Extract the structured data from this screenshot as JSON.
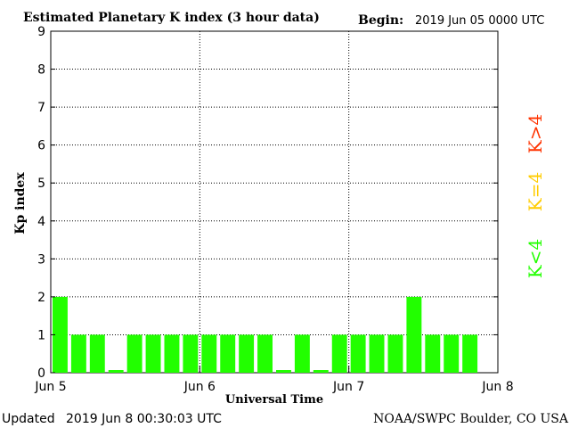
{
  "header": {
    "title": "Estimated Planetary K index (3 hour data)",
    "begin_label": "Begin:",
    "begin_value": "2019 Jun 05 0000 UTC"
  },
  "chart_data": {
    "type": "bar",
    "title": "Estimated Planetary K index (3 hour data)",
    "xlabel": "Universal Time",
    "ylabel": "Kp index",
    "ylim": [
      0,
      9
    ],
    "yticks": [
      "0",
      "1",
      "2",
      "3",
      "4",
      "5",
      "6",
      "7",
      "8",
      "9"
    ],
    "xticks": [
      "Jun 5",
      "Jun 6",
      "Jun 7",
      "Jun 8"
    ],
    "interval_hours": 3,
    "values": [
      2,
      1,
      1,
      0,
      1,
      1,
      1,
      1,
      1,
      1,
      1,
      1,
      0,
      1,
      0,
      1,
      1,
      1,
      1,
      2,
      1,
      1,
      1
    ],
    "grid": true,
    "bar_colors": {
      "below": "#22ff00",
      "equal": "#ffcc00",
      "above": "#ff3300"
    },
    "legend": {
      "position": "right",
      "items": [
        {
          "label": "K>4",
          "color": "#ff3300"
        },
        {
          "label": "K=4",
          "color": "#ffcc00"
        },
        {
          "label": "K<4",
          "color": "#22ff00"
        }
      ]
    }
  },
  "footer": {
    "updated_label": "Updated",
    "updated_value": "2019 Jun  8 00:30:03 UTC",
    "credit": "NOAA/SWPC Boulder, CO USA"
  }
}
